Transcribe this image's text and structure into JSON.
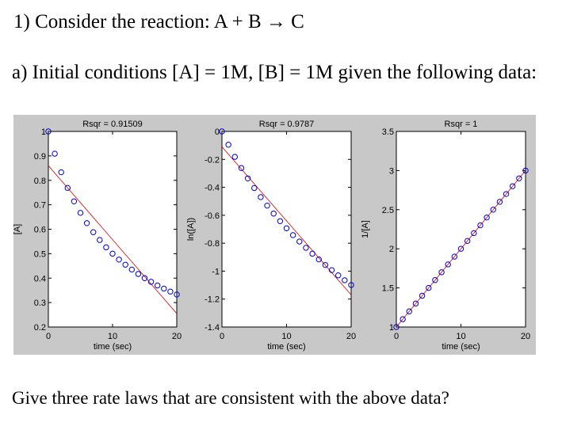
{
  "question": {
    "line1": "1) Consider the reaction: A + B → C",
    "line2": "a) Initial conditions [A] = 1M, [B] = 1M given the following data:",
    "line3": "Give three rate laws that are consistent with the above data?"
  },
  "colors": {
    "figure_bg": "#c8c8c8",
    "marker": "#0000cc",
    "fit_line": "#cc0000"
  },
  "chart_data": [
    {
      "type": "scatter",
      "title": "Rsqr = 0.91509",
      "xlabel": "time (sec)",
      "ylabel": "[A]",
      "xlim": [
        0,
        20
      ],
      "ylim": [
        0.2,
        1
      ],
      "xticks": [
        0,
        10,
        20
      ],
      "xtick_labels": [
        "0",
        "10",
        "20"
      ],
      "yticks": [
        0.2,
        0.3,
        0.4,
        0.5,
        0.6,
        0.7,
        0.8,
        0.9,
        1
      ],
      "ytick_labels": [
        "0.2",
        "0.3",
        "0.4",
        "0.5",
        "0.6",
        "0.7",
        "0.8",
        "0.9",
        "1"
      ],
      "x": [
        0,
        1,
        2,
        3,
        4,
        5,
        6,
        7,
        8,
        9,
        10,
        11,
        12,
        13,
        14,
        15,
        16,
        17,
        18,
        19,
        20
      ],
      "y": [
        1,
        0.909,
        0.833,
        0.769,
        0.714,
        0.667,
        0.625,
        0.588,
        0.556,
        0.526,
        0.5,
        0.476,
        0.455,
        0.435,
        0.417,
        0.4,
        0.385,
        0.37,
        0.357,
        0.345,
        0.333
      ],
      "fit": {
        "x": [
          0,
          20
        ],
        "y": [
          0.86,
          0.255
        ]
      }
    },
    {
      "type": "scatter",
      "title": "Rsqr = 0.9787",
      "xlabel": "time (sec)",
      "ylabel": "ln([A])",
      "xlim": [
        0,
        20
      ],
      "ylim": [
        -1.4,
        0
      ],
      "xticks": [
        0,
        10,
        20
      ],
      "xtick_labels": [
        "0",
        "10",
        "20"
      ],
      "yticks": [
        -1.4,
        -1.2,
        -1,
        -0.8,
        -0.6,
        -0.4,
        -0.2,
        0
      ],
      "ytick_labels": [
        "-1.4",
        "-1.2",
        "-1",
        "-0.8",
        "-0.6",
        "-0.4",
        "-0.2",
        "0"
      ],
      "x": [
        0,
        1,
        2,
        3,
        4,
        5,
        6,
        7,
        8,
        9,
        10,
        11,
        12,
        13,
        14,
        15,
        16,
        17,
        18,
        19,
        20
      ],
      "y": [
        0,
        -0.095,
        -0.182,
        -0.262,
        -0.336,
        -0.405,
        -0.47,
        -0.531,
        -0.588,
        -0.642,
        -0.693,
        -0.742,
        -0.788,
        -0.833,
        -0.875,
        -0.916,
        -0.956,
        -0.993,
        -1.03,
        -1.065,
        -1.099
      ],
      "fit": {
        "x": [
          0,
          20
        ],
        "y": [
          -0.11,
          -1.17
        ]
      }
    },
    {
      "type": "scatter",
      "title": "Rsqr = 1",
      "xlabel": "time (sec)",
      "ylabel": "1/[A]",
      "xlim": [
        0,
        20
      ],
      "ylim": [
        1,
        3.5
      ],
      "xticks": [
        0,
        10,
        20
      ],
      "xtick_labels": [
        "0",
        "10",
        "20"
      ],
      "yticks": [
        1,
        1.5,
        2,
        2.5,
        3,
        3.5
      ],
      "ytick_labels": [
        "1",
        "1.5",
        "2",
        "2.5",
        "3",
        "3.5"
      ],
      "x": [
        0,
        1,
        2,
        3,
        4,
        5,
        6,
        7,
        8,
        9,
        10,
        11,
        12,
        13,
        14,
        15,
        16,
        17,
        18,
        19,
        20
      ],
      "y": [
        1,
        1.1,
        1.2,
        1.3,
        1.4,
        1.5,
        1.6,
        1.7,
        1.8,
        1.9,
        2,
        2.1,
        2.2,
        2.3,
        2.4,
        2.5,
        2.6,
        2.7,
        2.8,
        2.9,
        3
      ],
      "fit": {
        "x": [
          0,
          20
        ],
        "y": [
          1,
          3
        ]
      }
    }
  ]
}
